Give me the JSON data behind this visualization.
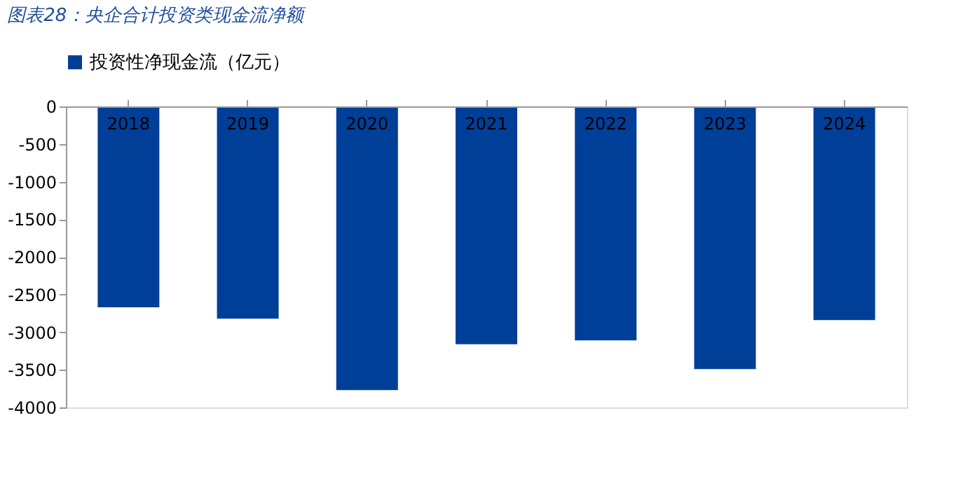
{
  "chart_data": {
    "type": "bar",
    "title": "图表28：央企合计投资类现金流净额",
    "categories": [
      "2018",
      "2019",
      "2020",
      "2021",
      "2022",
      "2023",
      "2024"
    ],
    "series": [
      {
        "name": "投资性净现金流（亿元）",
        "color": "#003f98",
        "values": [
          -2670,
          -2820,
          -3770,
          -3160,
          -3110,
          -3490,
          -2840
        ]
      }
    ],
    "ylim": [
      -4000,
      0
    ],
    "yticks": [
      0,
      -500,
      -1000,
      -1500,
      -2000,
      -2500,
      -3000,
      -3500,
      -4000
    ],
    "grid": false,
    "legend": "top"
  }
}
